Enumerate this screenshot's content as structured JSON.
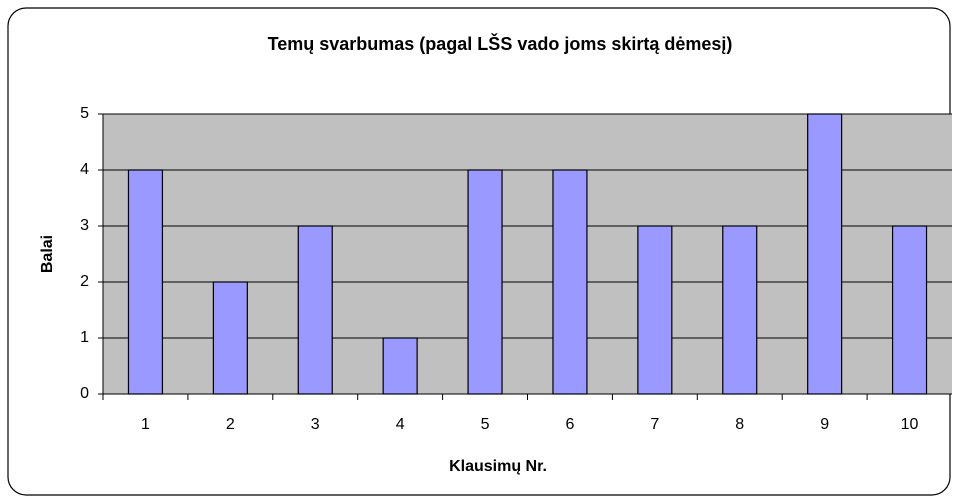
{
  "chart_data": {
    "type": "bar",
    "title": "Temų svarbumas (pagal LŠS vado joms skirtą dėmesį)",
    "x_label": "Klausimų Nr.",
    "y_label": "Balai",
    "categories": [
      "1",
      "2",
      "3",
      "4",
      "5",
      "6",
      "7",
      "8",
      "9",
      "10"
    ],
    "values": [
      4,
      2,
      3,
      1,
      4,
      4,
      3,
      3,
      5,
      3
    ],
    "color": "#9999ff",
    "ylim": [
      0,
      5
    ],
    "yticks": [
      0,
      1,
      2,
      3,
      4,
      5
    ],
    "grid": true
  }
}
